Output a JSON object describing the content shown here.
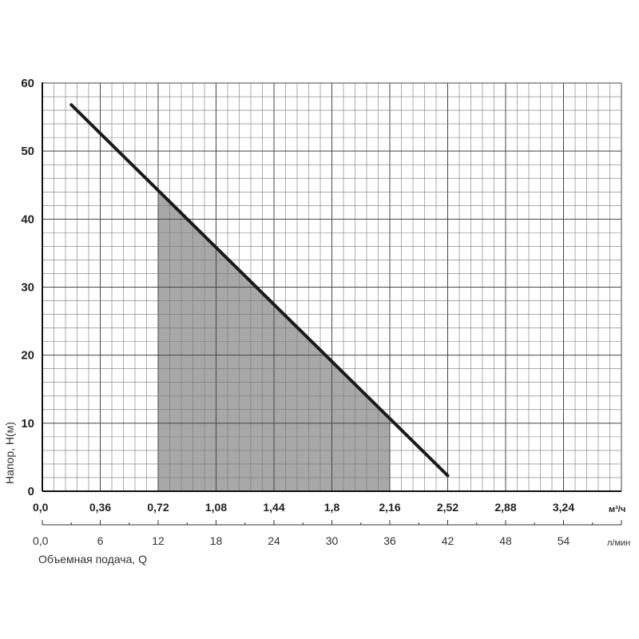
{
  "chart_data": {
    "type": "line",
    "title": "",
    "ylabel": "Напор, Н(м)",
    "xlabel": "Объемная подача, Q",
    "ylim": [
      0,
      60
    ],
    "y_ticks": [
      "0",
      "10",
      "20",
      "30",
      "40",
      "50",
      "60"
    ],
    "x_unit_primary": "м³/ч",
    "x_unit_secondary": "л/мин",
    "xlim_primary": [
      0,
      3.6
    ],
    "xlim_secondary": [
      0,
      60
    ],
    "x_ticks_primary": [
      "0,0",
      "0,36",
      "0,72",
      "1,08",
      "1,44",
      "1,8",
      "2,16",
      "2,52",
      "2,88",
      "3,24"
    ],
    "x_ticks_secondary": [
      "0,0",
      "6",
      "12",
      "18",
      "24",
      "30",
      "36",
      "42",
      "48",
      "54"
    ],
    "grid": true,
    "series": [
      {
        "x": [
          0.18,
          2.52
        ],
        "y": [
          56.8,
          2.3
        ]
      }
    ],
    "shaded_region": {
      "x_range": [
        0.72,
        2.16
      ],
      "color": "#a8a8a8"
    },
    "line_color": "#1a1a1a"
  }
}
